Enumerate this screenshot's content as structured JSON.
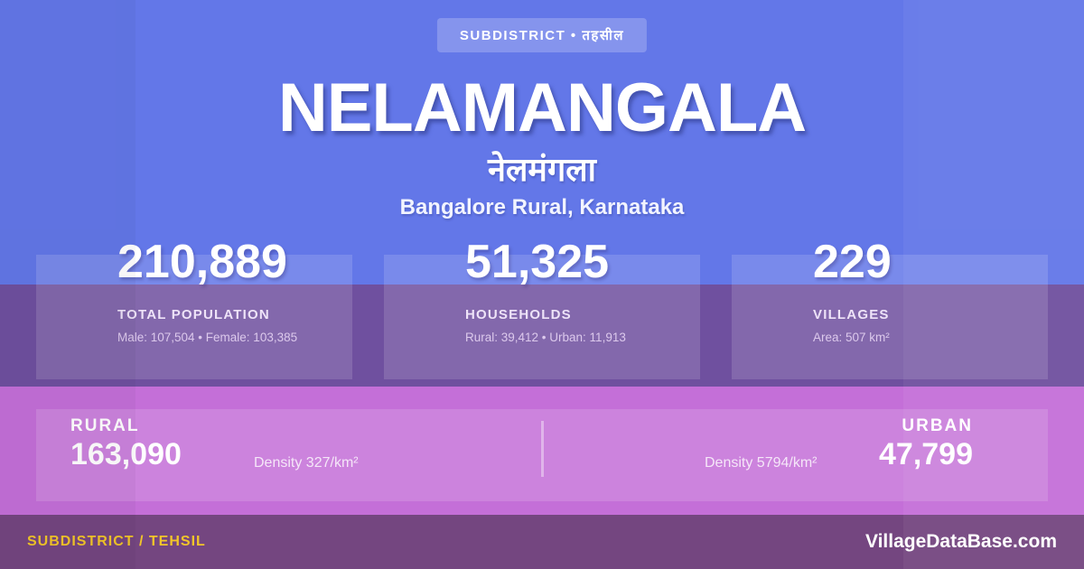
{
  "badge": {
    "label": "SUBDISTRICT • तहसील"
  },
  "header": {
    "title": "NELAMANGALA",
    "title_native": "नेलमंगला",
    "location": "Bangalore Rural, Karnataka"
  },
  "stats": [
    {
      "value": "210,889",
      "label": "TOTAL POPULATION",
      "detail": "Male: 107,504 • Female: 103,385"
    },
    {
      "value": "51,325",
      "label": "HOUSEHOLDS",
      "detail": "Rural: 39,412 • Urban: 11,913"
    },
    {
      "value": "229",
      "label": "VILLAGES",
      "detail": "Area: 507 km²"
    }
  ],
  "split": {
    "rural": {
      "label": "RURAL",
      "value": "163,090",
      "density": "Density 327/km²"
    },
    "urban": {
      "label": "URBAN",
      "value": "47,799",
      "density": "Density 5794/km²"
    }
  },
  "footer": {
    "left": "SUBDISTRICT / TEHSIL",
    "right": "VillageDataBase.com"
  },
  "colors": {
    "background_blue": "#6377e8",
    "stats_band_purple": "#6f509f",
    "split_band_pink": "#c46fd8",
    "footer_purple": "#744680",
    "accent_yellow": "#f2c629",
    "text_white": "#ffffff"
  }
}
